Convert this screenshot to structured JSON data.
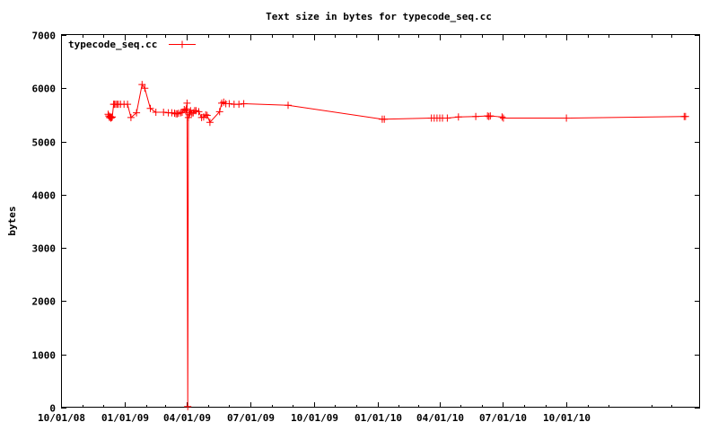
{
  "chart_data": {
    "type": "line",
    "title": "Text size in bytes for typecode_seq.cc",
    "xlabel": "",
    "ylabel": "bytes",
    "x_tick_labels": [
      "10/01/08",
      "01/01/09",
      "04/01/09",
      "07/01/09",
      "10/01/09",
      "01/01/10",
      "04/01/10",
      "07/01/10",
      "10/01/10"
    ],
    "x_ticks": [
      "2008-10-01",
      "2009-01-01",
      "2009-04-01",
      "2009-07-01",
      "2009-10-01",
      "2010-01-01",
      "2010-04-01",
      "2010-07-01",
      "2010-10-01"
    ],
    "xlim": [
      "2008-10-01",
      "2011-04-12"
    ],
    "ylim": [
      0,
      7000
    ],
    "y_ticks": [
      0,
      1000,
      2000,
      3000,
      4000,
      5000,
      6000,
      7000
    ],
    "grid": false,
    "legend_position": "top-left",
    "series": [
      {
        "name": "typecode_seq.cc",
        "color": "#ff0000",
        "marker": "+",
        "x": [
          "2008-12-08",
          "2008-12-09",
          "2008-12-10",
          "2008-12-11",
          "2008-12-12",
          "2008-12-13",
          "2008-12-14",
          "2008-12-16",
          "2008-12-17",
          "2008-12-19",
          "2008-12-21",
          "2008-12-23",
          "2008-12-26",
          "2008-12-31",
          "2009-01-05",
          "2009-01-10",
          "2009-01-18",
          "2009-01-26",
          "2009-01-30",
          "2009-02-07",
          "2009-02-15",
          "2009-02-26",
          "2009-03-05",
          "2009-03-10",
          "2009-03-14",
          "2009-03-16",
          "2009-03-18",
          "2009-03-20",
          "2009-03-23",
          "2009-03-25",
          "2009-03-28",
          "2009-03-30",
          "2009-03-31",
          "2009-04-01",
          "2009-04-02",
          "2009-04-03",
          "2009-04-04",
          "2009-04-05",
          "2009-04-06",
          "2009-04-08",
          "2009-04-10",
          "2009-04-12",
          "2009-04-14",
          "2009-04-18",
          "2009-04-22",
          "2009-04-25",
          "2009-04-28",
          "2009-04-30",
          "2009-05-04",
          "2009-05-18",
          "2009-05-21",
          "2009-05-24",
          "2009-05-27",
          "2009-06-01",
          "2009-06-08",
          "2009-06-15",
          "2009-06-22",
          "2009-08-25",
          "2010-01-08",
          "2010-01-11",
          "2010-03-20",
          "2010-03-24",
          "2010-03-28",
          "2010-04-01",
          "2010-04-05",
          "2010-04-12",
          "2010-04-28",
          "2010-05-23",
          "2010-06-09",
          "2010-06-11",
          "2010-06-13",
          "2010-06-30",
          "2010-07-02",
          "2010-10-01",
          "2011-03-20",
          "2011-03-22"
        ],
        "y": [
          5510,
          5480,
          5450,
          5470,
          5440,
          5450,
          5460,
          5700,
          5700,
          5700,
          5700,
          5700,
          5700,
          5700,
          5700,
          5450,
          5540,
          6070,
          6000,
          5620,
          5550,
          5550,
          5540,
          5540,
          5530,
          5520,
          5520,
          5530,
          5540,
          5550,
          5600,
          5580,
          5610,
          5720,
          20,
          5450,
          5500,
          5540,
          5580,
          5530,
          5540,
          5580,
          5580,
          5560,
          5450,
          5460,
          5500,
          5490,
          5360,
          5560,
          5720,
          5740,
          5710,
          5710,
          5700,
          5700,
          5710,
          5680,
          5420,
          5420,
          5440,
          5440,
          5440,
          5440,
          5440,
          5440,
          5460,
          5470,
          5480,
          5470,
          5480,
          5460,
          5440,
          5440,
          5470,
          5470
        ]
      }
    ]
  }
}
